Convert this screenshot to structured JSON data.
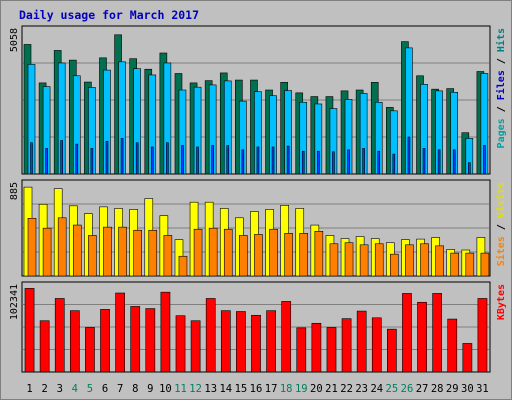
{
  "chart_data": {
    "title": "Daily usage for March 2017",
    "type": "bar",
    "categories": [
      "1",
      "2",
      "3",
      "4",
      "5",
      "6",
      "7",
      "8",
      "9",
      "10",
      "11",
      "12",
      "13",
      "14",
      "15",
      "16",
      "17",
      "18",
      "19",
      "20",
      "21",
      "22",
      "23",
      "24",
      "25",
      "26",
      "27",
      "28",
      "29",
      "30",
      "31"
    ],
    "weekend_days": [
      "4",
      "5",
      "11",
      "12",
      "18",
      "19",
      "25",
      "26"
    ],
    "panels": [
      {
        "id": "hits-files-pages",
        "max_label": "5058",
        "ylim": [
          0,
          5058
        ],
        "legend": [
          {
            "text": "Pages",
            "color": "#00A0A0"
          },
          {
            "text": "Files",
            "color": "#0000C0"
          },
          {
            "text": "Hits",
            "color": "#008080"
          }
        ],
        "separator": " / ",
        "series": [
          {
            "name": "Hits",
            "color": "#007050",
            "values": [
              4550,
              3200,
              4340,
              4000,
              3230,
              4080,
              4890,
              4050,
              3680,
              4250,
              3530,
              3200,
              3280,
              3550,
              3300,
              3300,
              2950,
              3220,
              2850,
              2720,
              2720,
              2920,
              2950,
              3220,
              2340,
              4650,
              3450,
              2980,
              3000,
              1450,
              3600
            ]
          },
          {
            "name": "Files",
            "color": "#00C0FF",
            "values": [
              3850,
              3070,
              3900,
              3450,
              3040,
              3650,
              3940,
              3700,
              3480,
              3900,
              2950,
              3050,
              3130,
              3270,
              2560,
              2890,
              2750,
              2930,
              2520,
              2460,
              2300,
              2620,
              2830,
              2520,
              2220,
              4430,
              3150,
              2920,
              2870,
              1250,
              3530
            ]
          },
          {
            "name": "Pages",
            "color": "#0040FF",
            "values": [
              1100,
              900,
              1180,
              1050,
              900,
              1150,
              1250,
              1100,
              950,
              1100,
              1000,
              950,
              1000,
              1000,
              850,
              950,
              950,
              980,
              800,
              800,
              780,
              850,
              900,
              800,
              700,
              1300,
              900,
              850,
              850,
              400,
              1000
            ]
          }
        ]
      },
      {
        "id": "visits-sites",
        "max_label": "885",
        "ylim": [
          0,
          885
        ],
        "legend": [
          {
            "text": "Sites",
            "color": "#FF8000"
          },
          {
            "text": "Visits",
            "color": "#E0E000"
          }
        ],
        "separator": " / ",
        "series": [
          {
            "name": "Visits",
            "color": "#FFFF00",
            "values": [
              855,
              690,
              840,
              675,
              600,
              665,
              650,
              640,
              745,
              580,
              350,
              710,
              710,
              650,
              560,
              620,
              640,
              680,
              650,
              490,
              390,
              360,
              380,
              360,
              320,
              350,
              355,
              370,
              255,
              250,
              370
            ]
          },
          {
            "name": "Sites",
            "color": "#FF8000",
            "values": [
              555,
              460,
              560,
              490,
              390,
              470,
              470,
              440,
              440,
              390,
              190,
              450,
              460,
              450,
              390,
              400,
              450,
              410,
              410,
              430,
              310,
              320,
              300,
              310,
              210,
              300,
              310,
              290,
              220,
              220,
              220
            ]
          }
        ]
      },
      {
        "id": "kbytes",
        "max_label": "102341",
        "ylim": [
          0,
          102341
        ],
        "legend": [
          {
            "text": "KBytes",
            "color": "#FF0000"
          }
        ],
        "separator": "",
        "series": [
          {
            "name": "KBytes",
            "color": "#FF0000",
            "values": [
              99500,
              61000,
              87500,
              73000,
              53000,
              74500,
              94000,
              78000,
              75500,
              95000,
              67000,
              61000,
              87500,
              73000,
              72000,
              67500,
              73000,
              84000,
              52500,
              58000,
              53000,
              63500,
              72500,
              64500,
              51000,
              93500,
              83000,
              93500,
              63000,
              34000,
              87500
            ]
          }
        ]
      }
    ]
  }
}
